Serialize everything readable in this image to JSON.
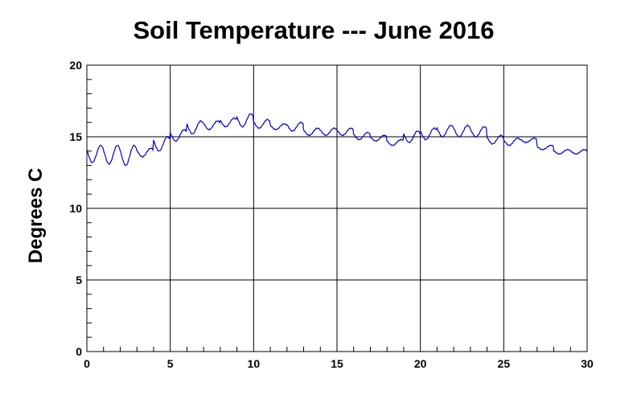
{
  "chart_data": {
    "type": "line",
    "title": "Soil Temperature --- June 2016",
    "xlabel": "",
    "ylabel": "Degrees C",
    "xlim": [
      0,
      30
    ],
    "ylim": [
      0,
      20
    ],
    "x_ticks": [
      0,
      5,
      10,
      15,
      20,
      25,
      30
    ],
    "y_ticks": [
      0,
      5,
      10,
      15,
      20
    ],
    "x_minor_step": 1,
    "y_minor_step": 1,
    "grid": true,
    "legend": "none",
    "series": [
      {
        "color": "#0000cc",
        "daily_min": [
          13.2,
          13.1,
          13.0,
          13.6,
          14.0,
          14.7,
          15.2,
          15.5,
          15.7,
          15.7,
          15.6,
          15.5,
          15.4,
          15.1,
          15.1,
          15.1,
          14.8,
          14.7,
          14.4,
          14.6,
          14.8,
          15.0,
          15.0,
          15.0,
          14.5,
          14.4,
          14.6,
          14.1,
          13.8,
          13.8
        ],
        "daily_max": [
          14.4,
          14.4,
          14.4,
          14.2,
          15.0,
          15.5,
          16.1,
          16.1,
          16.3,
          16.6,
          16.2,
          15.9,
          16.0,
          15.6,
          15.6,
          15.6,
          15.3,
          15.1,
          14.8,
          15.4,
          15.6,
          15.8,
          15.8,
          15.7,
          15.1,
          14.9,
          14.9,
          14.4,
          14.1,
          14.1
        ]
      }
    ]
  }
}
